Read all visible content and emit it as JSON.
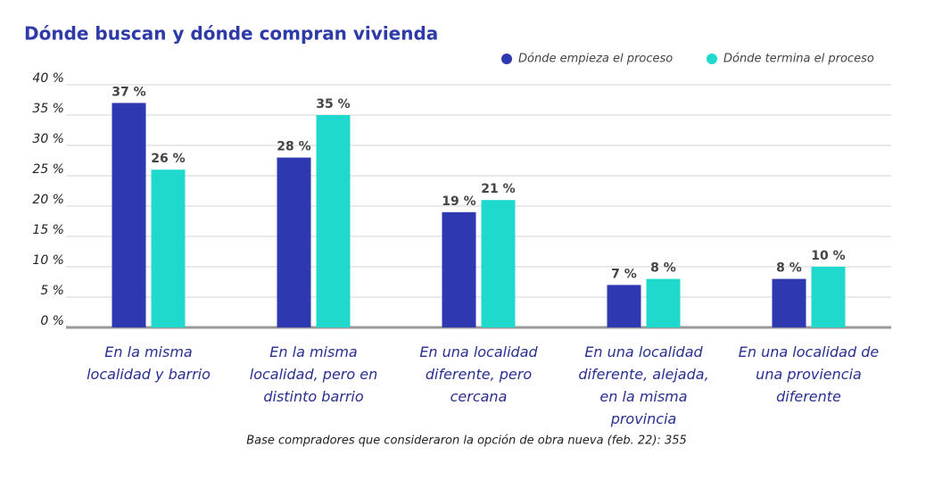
{
  "chart_data": {
    "type": "bar",
    "title": "Dónde buscan y dónde compran vivienda",
    "categories": [
      "En la misma localidad y barrio",
      "En la misma localidad, pero en distinto barrio",
      "En una localidad diferente, pero cercana",
      "En una localidad diferente, alejada, en la misma provincia",
      "En una localidad de una proviencia diferente"
    ],
    "series": [
      {
        "name": "Dónde empieza el proceso",
        "color": "#2e38b0",
        "values": [
          37,
          28,
          19,
          7,
          8
        ],
        "value_labels": [
          "37 %",
          "28 %",
          "19 %",
          "7 %",
          "8 %"
        ]
      },
      {
        "name": "Dónde termina el proceso",
        "color": "#1fd9cd",
        "values": [
          26,
          35,
          21,
          8,
          10
        ],
        "value_labels": [
          "26 %",
          "35 %",
          "21 %",
          "8 %",
          "10 %"
        ]
      }
    ],
    "ylim": [
      0,
      40
    ],
    "yticks": [
      {
        "value": 0,
        "label": "0 %"
      },
      {
        "value": 5,
        "label": "5 %"
      },
      {
        "value": 10,
        "label": "10 %"
      },
      {
        "value": 15,
        "label": "15 %"
      },
      {
        "value": 20,
        "label": "20 %"
      },
      {
        "value": 25,
        "label": "25 %"
      },
      {
        "value": 30,
        "label": "30 %"
      },
      {
        "value": 35,
        "label": "35 %"
      },
      {
        "value": 40,
        "label": "40 %"
      }
    ],
    "grid": true,
    "legend": "top-right",
    "note": "Base compradores que consideraron la opción de obra nueva (feb. 22): 355"
  }
}
